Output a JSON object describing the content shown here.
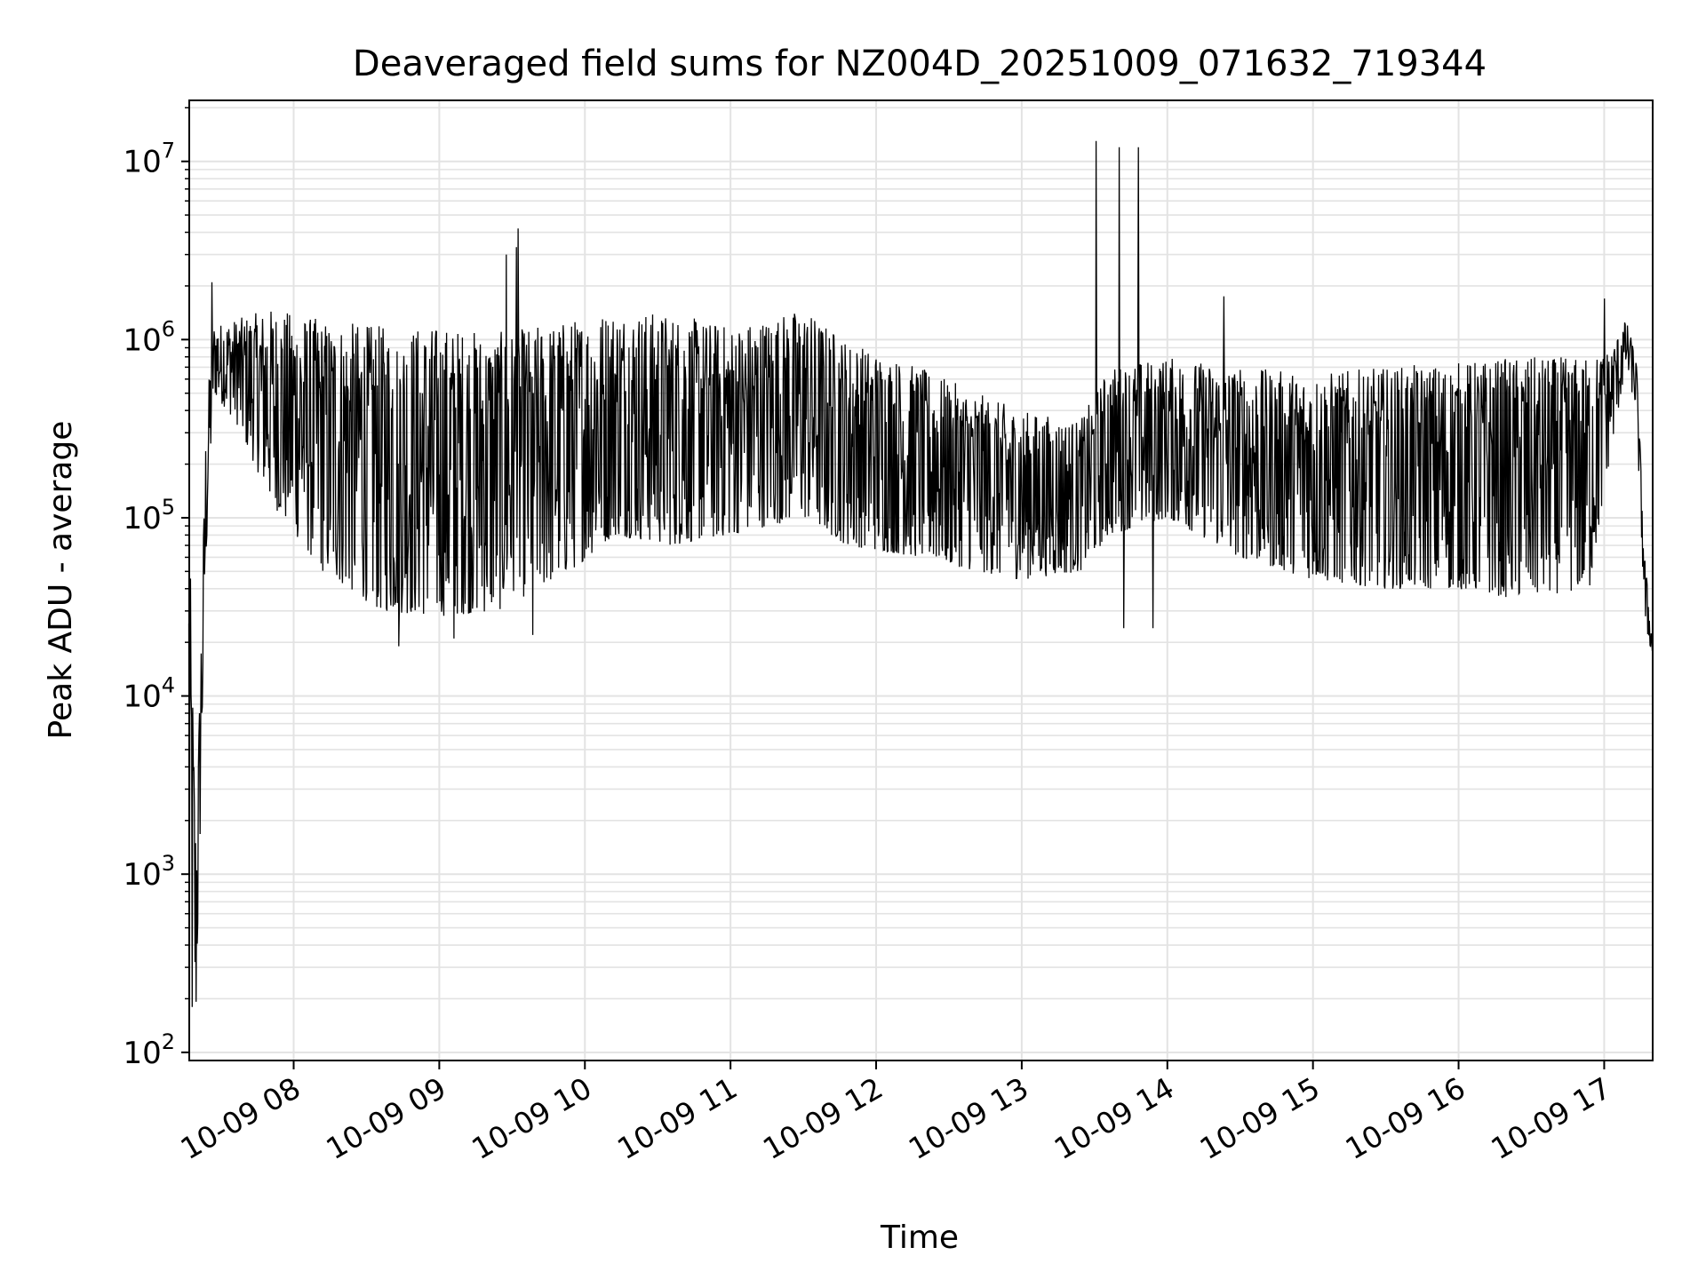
{
  "chart_data": {
    "type": "line",
    "title": "Deaveraged field sums for NZ004D_20251009_071632_719344",
    "xlabel": "Time",
    "ylabel": "Peak ADU - average",
    "yscale": "log",
    "ylim": [
      90,
      22000000
    ],
    "xlim_hours": [
      7.283,
      17.333
    ],
    "grid": true,
    "line_color": "#000000",
    "grid_color": "#e3e3e3",
    "x_ticks": [
      {
        "hour": 8,
        "label": "10-09 08"
      },
      {
        "hour": 9,
        "label": "10-09 09"
      },
      {
        "hour": 10,
        "label": "10-09 10"
      },
      {
        "hour": 11,
        "label": "10-09 11"
      },
      {
        "hour": 12,
        "label": "10-09 12"
      },
      {
        "hour": 13,
        "label": "10-09 13"
      },
      {
        "hour": 14,
        "label": "10-09 14"
      },
      {
        "hour": 15,
        "label": "10-09 15"
      },
      {
        "hour": 16,
        "label": "10-09 16"
      },
      {
        "hour": 17,
        "label": "10-09 17"
      }
    ],
    "y_ticks": [
      {
        "value": 100,
        "base": "10",
        "exp": "2"
      },
      {
        "value": 1000,
        "base": "10",
        "exp": "3"
      },
      {
        "value": 10000,
        "base": "10",
        "exp": "4"
      },
      {
        "value": 100000,
        "base": "10",
        "exp": "5"
      },
      {
        "value": 1000000,
        "base": "10",
        "exp": "6"
      },
      {
        "value": 10000000,
        "base": "10",
        "exp": "7"
      }
    ],
    "envelope": [
      {
        "hour": 7.28,
        "high": 130000,
        "low": 100
      },
      {
        "hour": 7.33,
        "high": 1500,
        "low": 150
      },
      {
        "hour": 7.4,
        "high": 400000,
        "low": 60000
      },
      {
        "hour": 7.45,
        "high": 1200000,
        "low": 500000
      },
      {
        "hour": 7.6,
        "high": 1300000,
        "low": 350000
      },
      {
        "hour": 7.85,
        "high": 1500000,
        "low": 120000
      },
      {
        "hour": 8.2,
        "high": 1300000,
        "low": 50000
      },
      {
        "hour": 8.6,
        "high": 1200000,
        "low": 30000
      },
      {
        "hour": 9.0,
        "high": 1200000,
        "low": 28000
      },
      {
        "hour": 9.4,
        "high": 1100000,
        "low": 30000
      },
      {
        "hour": 9.9,
        "high": 1300000,
        "low": 50000
      },
      {
        "hour": 10.2,
        "high": 1500000,
        "low": 80000
      },
      {
        "hour": 10.6,
        "high": 1400000,
        "low": 70000
      },
      {
        "hour": 11.0,
        "high": 1200000,
        "low": 80000
      },
      {
        "hour": 11.5,
        "high": 1500000,
        "low": 100000
      },
      {
        "hour": 11.8,
        "high": 1000000,
        "low": 70000
      },
      {
        "hour": 12.3,
        "high": 700000,
        "low": 60000
      },
      {
        "hour": 12.7,
        "high": 500000,
        "low": 50000
      },
      {
        "hour": 13.0,
        "high": 400000,
        "low": 45000
      },
      {
        "hour": 13.4,
        "high": 350000,
        "low": 50000
      },
      {
        "hour": 13.6,
        "high": 700000,
        "low": 80000
      },
      {
        "hour": 14.0,
        "high": 800000,
        "low": 100000
      },
      {
        "hour": 14.5,
        "high": 700000,
        "low": 60000
      },
      {
        "hour": 15.0,
        "high": 650000,
        "low": 45000
      },
      {
        "hour": 15.5,
        "high": 700000,
        "low": 40000
      },
      {
        "hour": 16.0,
        "high": 750000,
        "low": 40000
      },
      {
        "hour": 16.4,
        "high": 800000,
        "low": 35000
      },
      {
        "hour": 16.9,
        "high": 800000,
        "low": 40000
      },
      {
        "hour": 17.05,
        "high": 900000,
        "low": 250000
      },
      {
        "hour": 17.15,
        "high": 1300000,
        "low": 700000
      },
      {
        "hour": 17.22,
        "high": 800000,
        "low": 400000
      },
      {
        "hour": 17.28,
        "high": 60000,
        "low": 25000
      },
      {
        "hour": 17.33,
        "high": 20000,
        "low": 17000
      }
    ],
    "spikes": [
      {
        "hour": 7.44,
        "value": 2100000
      },
      {
        "hour": 9.46,
        "value": 3000000
      },
      {
        "hour": 9.53,
        "value": 3300000
      },
      {
        "hour": 9.54,
        "value": 4200000
      },
      {
        "hour": 13.51,
        "value": 13000000
      },
      {
        "hour": 13.67,
        "value": 12000000
      },
      {
        "hour": 13.8,
        "value": 12000000
      },
      {
        "hour": 14.39,
        "value": 1750000
      },
      {
        "hour": 17.0,
        "value": 1700000
      }
    ],
    "dips": [
      {
        "hour": 8.72,
        "value": 19000
      },
      {
        "hour": 9.1,
        "value": 21000
      },
      {
        "hour": 9.64,
        "value": 22000
      },
      {
        "hour": 13.7,
        "value": 24000
      },
      {
        "hour": 13.9,
        "value": 24000
      }
    ]
  }
}
